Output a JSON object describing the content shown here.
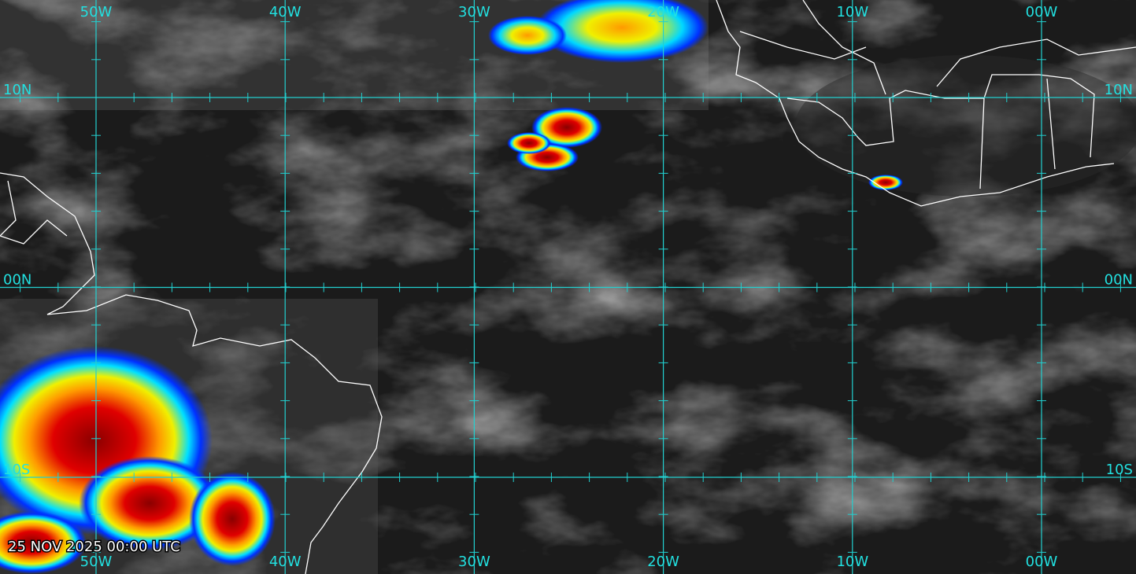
{
  "map": {
    "longitude_labels": [
      "50W",
      "40W",
      "30W",
      "20W",
      "10W",
      "00W"
    ],
    "latitude_labels": [
      "10N",
      "00N",
      "10S"
    ],
    "timestamp": "25 NOV 2025 00:00 UTC"
  }
}
